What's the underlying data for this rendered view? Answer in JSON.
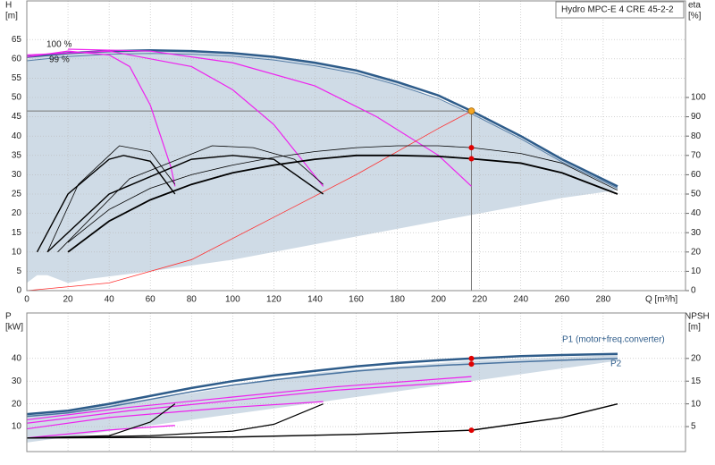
{
  "chart_data": [
    {
      "type": "line",
      "title": "Hydro MPC-E 4 CRE 45-2-2",
      "y_label": "H",
      "y_unit": "[m]",
      "y2_label": "eta",
      "y2_unit": "[%]",
      "x_label": "Q [m³/h]",
      "annotations": [
        "100 %",
        "99 %"
      ],
      "xlim": [
        0,
        320
      ],
      "ylim": [
        0,
        75
      ],
      "y2lim": [
        0,
        150
      ],
      "xticks": [
        0,
        20,
        40,
        60,
        80,
        100,
        120,
        140,
        160,
        180,
        200,
        220,
        240,
        260,
        280
      ],
      "yticks": [
        0,
        5,
        10,
        15,
        20,
        25,
        30,
        35,
        40,
        45,
        50,
        55,
        60,
        65
      ],
      "y2ticks": [
        0,
        10,
        20,
        30,
        40,
        50,
        60,
        70,
        80,
        90,
        100
      ],
      "grid": true,
      "series": [
        {
          "type": "band",
          "color": "#cfdbe6",
          "x": [
            0,
            5,
            10,
            20,
            30,
            60,
            100,
            140,
            180,
            220,
            260,
            287
          ],
          "values": [
            60,
            60.5,
            61,
            61.5,
            61.8,
            62.2,
            61.5,
            59,
            54,
            45,
            34,
            27
          ],
          "lower": [
            2,
            4,
            4,
            2,
            3,
            5,
            8,
            12,
            16,
            20,
            24,
            26
          ]
        },
        {
          "color": "#2e5c8a",
          "width": 2.5,
          "x": [
            0,
            20,
            40,
            60,
            80,
            100,
            120,
            140,
            160,
            180,
            200,
            216,
            240,
            260,
            287
          ],
          "values": [
            60.5,
            61.5,
            62,
            62.2,
            62,
            61.5,
            60.5,
            59,
            57,
            54,
            50.5,
            46.5,
            40,
            34,
            27
          ]
        },
        {
          "color": "#5a80a8",
          "width": 1,
          "x": [
            0,
            20,
            40,
            60,
            80,
            100,
            120,
            140,
            160,
            180,
            200,
            216,
            240,
            260,
            287
          ],
          "values": [
            59.5,
            60.6,
            61.2,
            61.4,
            61.2,
            60.7,
            59.7,
            58.2,
            56.2,
            53.2,
            49.7,
            45.8,
            39.3,
            33.3,
            26.5
          ]
        },
        {
          "color": "#ee22ee",
          "width": 1.2,
          "x": [
            0,
            20,
            40,
            50,
            60,
            70,
            72
          ],
          "values": [
            60.5,
            62,
            61,
            58,
            48,
            32,
            27
          ]
        },
        {
          "color": "#ee22ee",
          "width": 1.2,
          "x": [
            0,
            40,
            80,
            100,
            120,
            135,
            144
          ],
          "values": [
            61,
            62,
            58,
            52,
            43,
            33,
            27
          ]
        },
        {
          "color": "#ee22ee",
          "width": 1.2,
          "x": [
            20,
            60,
            100,
            140,
            170,
            200,
            216
          ],
          "values": [
            62.5,
            62,
            59,
            53,
            45,
            35,
            27
          ]
        },
        {
          "color": "#ff3030",
          "width": 0.8,
          "x": [
            0,
            40,
            80,
            120,
            160,
            200,
            216
          ],
          "values": [
            0,
            2,
            8,
            19,
            30,
            42,
            46.5
          ]
        },
        {
          "axis": "y2",
          "color": "#000",
          "width": 1.8,
          "x": [
            20,
            40,
            60,
            80,
            100,
            120,
            140,
            160,
            180,
            200,
            216,
            240,
            260,
            287
          ],
          "values": [
            20,
            36,
            47,
            55,
            61,
            65,
            68,
            70,
            70,
            69.5,
            68.3,
            66,
            61,
            50
          ]
        },
        {
          "axis": "y2",
          "color": "#000",
          "width": 0.8,
          "x": [
            20,
            40,
            60,
            80,
            100,
            120,
            140,
            160,
            180,
            200,
            216,
            240,
            260,
            287
          ],
          "values": [
            25,
            42,
            53,
            60,
            65,
            69,
            72,
            74,
            75,
            75,
            74,
            71,
            66,
            52
          ]
        },
        {
          "axis": "y2",
          "color": "#000",
          "width": 1.4,
          "x": [
            5,
            20,
            40,
            47,
            60,
            72
          ],
          "values": [
            20,
            50,
            68,
            70,
            67,
            50
          ]
        },
        {
          "axis": "y2",
          "color": "#000",
          "width": 0.8,
          "x": [
            10,
            25,
            45,
            60,
            72
          ],
          "values": [
            20,
            55,
            75,
            72,
            55
          ]
        },
        {
          "axis": "y2",
          "color": "#000",
          "width": 1.4,
          "x": [
            10,
            40,
            80,
            100,
            120,
            144
          ],
          "values": [
            20,
            50,
            68,
            70,
            68,
            50
          ]
        },
        {
          "axis": "y2",
          "color": "#000",
          "width": 0.8,
          "x": [
            15,
            50,
            90,
            110,
            130,
            144
          ],
          "values": [
            20,
            58,
            75,
            74,
            68,
            55
          ]
        }
      ],
      "duty_point": {
        "x": 216,
        "y": 46.5,
        "color": "#f5a623"
      },
      "markers": [
        {
          "x": 216,
          "y": 74,
          "axis": "y2",
          "color": "#e00000"
        },
        {
          "x": 216,
          "y": 68.3,
          "axis": "y2",
          "color": "#e00000"
        }
      ]
    },
    {
      "type": "line",
      "y_label": "P",
      "y_unit": "[kW]",
      "y2_label": "NPSH",
      "y2_unit": "[m]",
      "xlim": [
        0,
        320
      ],
      "ylim": [
        -1,
        60
      ],
      "y2lim": [
        -0.5,
        30
      ],
      "xticks": [
        0,
        20,
        40,
        60,
        80,
        100,
        120,
        140,
        160,
        180,
        200,
        220,
        240,
        260,
        280
      ],
      "yticks": [
        10,
        20,
        30,
        40
      ],
      "y2ticks": [
        5,
        10,
        15,
        20
      ],
      "grid": true,
      "series": [
        {
          "type": "band",
          "color": "#cfdbe6",
          "x": [
            0,
            72,
            144,
            216,
            287
          ],
          "values": [
            15,
            23.5,
            34,
            39,
            41.5
          ],
          "lower": [
            3,
            12,
            21,
            30,
            39
          ]
        },
        {
          "name": "P1 (motor+freq.converter)",
          "color": "#2e5c8a",
          "width": 2.5,
          "x": [
            0,
            20,
            40,
            60,
            80,
            100,
            120,
            140,
            160,
            180,
            200,
            216,
            240,
            260,
            287
          ],
          "values": [
            15.5,
            17,
            20,
            23.5,
            27,
            30,
            32.5,
            34.5,
            36.5,
            38,
            39.2,
            40,
            41,
            41.5,
            42
          ]
        },
        {
          "name": "P2",
          "color": "#4a74a0",
          "width": 1.5,
          "x": [
            0,
            20,
            40,
            60,
            80,
            100,
            120,
            140,
            160,
            180,
            200,
            216,
            240,
            260,
            287
          ],
          "values": [
            14.5,
            16,
            18.7,
            22,
            25.3,
            28.2,
            30.6,
            32.6,
            34.4,
            35.8,
            36.9,
            37.5,
            38.5,
            39.2,
            40
          ]
        },
        {
          "color": "#ee22ee",
          "width": 1.2,
          "x": [
            0,
            50,
            100,
            150,
            216
          ],
          "values": [
            13,
            18.5,
            23,
            27.5,
            32
          ]
        },
        {
          "color": "#ee22ee",
          "width": 1.2,
          "x": [
            0,
            50,
            100,
            150,
            216
          ],
          "values": [
            11.5,
            17,
            21.5,
            26,
            30
          ]
        },
        {
          "color": "#ee22ee",
          "width": 1.2,
          "x": [
            0,
            40,
            100,
            144
          ],
          "values": [
            9,
            14,
            18.5,
            21
          ]
        },
        {
          "color": "#ee22ee",
          "width": 1.2,
          "x": [
            0,
            40,
            72
          ],
          "values": [
            5,
            8.5,
            10.5
          ]
        },
        {
          "axis": "y2",
          "color": "#000",
          "width": 1.4,
          "x": [
            0,
            100,
            160,
            216,
            260,
            287
          ],
          "values": [
            2.5,
            2.7,
            3.3,
            4.2,
            7,
            10
          ]
        },
        {
          "axis": "y2",
          "color": "#000",
          "width": 1.2,
          "x": [
            0,
            60,
            100,
            120,
            144
          ],
          "values": [
            2.5,
            3,
            4,
            5.5,
            10
          ]
        },
        {
          "axis": "y2",
          "color": "#000",
          "width": 1.2,
          "x": [
            0,
            40,
            60,
            72
          ],
          "values": [
            2.5,
            3,
            6,
            10
          ]
        }
      ],
      "markers": [
        {
          "x": 216,
          "y": 40,
          "color": "#e00000"
        },
        {
          "x": 216,
          "y": 37.5,
          "color": "#e00000"
        },
        {
          "x": 216,
          "y": 4.2,
          "axis": "y2",
          "color": "#e00000"
        }
      ]
    }
  ]
}
